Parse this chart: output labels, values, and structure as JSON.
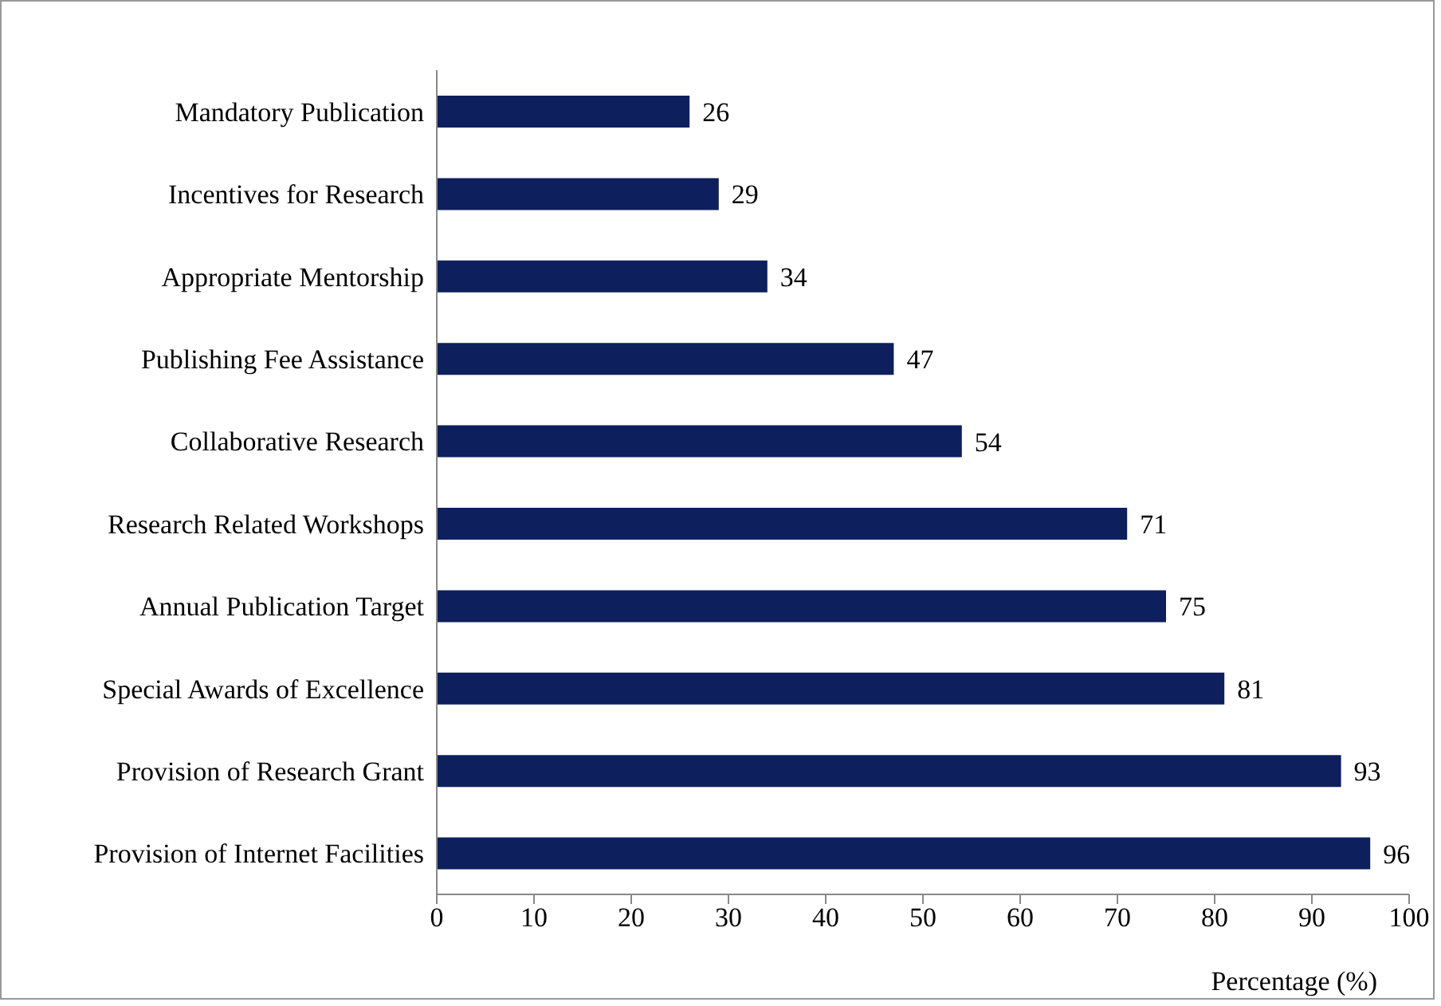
{
  "chart_data": {
    "type": "bar",
    "orientation": "horizontal",
    "categories": [
      "Mandatory Publication",
      "Incentives for Research",
      "Appropriate Mentorship",
      "Publishing Fee Assistance",
      "Collaborative Research",
      "Research Related Workshops",
      "Annual Publication Target",
      "Special Awards of Excellence",
      "Provision of Research Grant",
      "Provision of Internet Facilities"
    ],
    "values": [
      26,
      29,
      34,
      47,
      54,
      71,
      75,
      81,
      93,
      96
    ],
    "color": "#0d1f5c",
    "xlabel": "Percentage (%)",
    "xlim": [
      0,
      100
    ],
    "xticks": [
      0,
      10,
      20,
      30,
      40,
      50,
      60,
      70,
      80,
      90,
      100
    ],
    "data_labels": true,
    "grid": false,
    "legend": false
  }
}
